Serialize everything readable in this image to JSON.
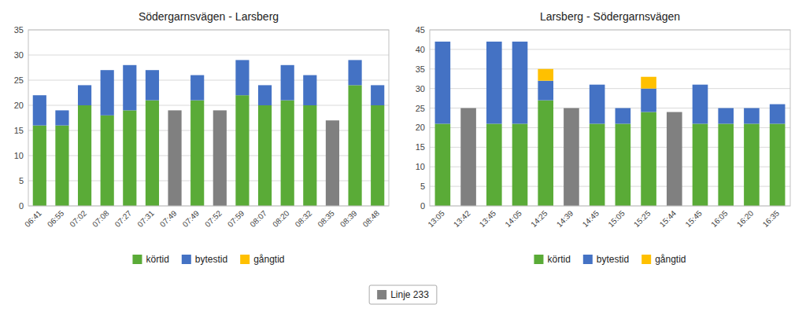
{
  "chart_data": [
    {
      "type": "bar",
      "title": "Södergarnsvägen - Larsberg",
      "categories": [
        "06:41",
        "06:55",
        "07:02",
        "07:08",
        "07:27",
        "07:31",
        "07:49",
        "07:49",
        "07:52",
        "07:59",
        "08:07",
        "08:20",
        "08:32",
        "08:35",
        "08:39",
        "08:48"
      ],
      "series": [
        {
          "name": "Linje 233",
          "color": "#808080",
          "values": [
            0,
            0,
            0,
            0,
            0,
            0,
            19,
            0,
            19,
            0,
            0,
            0,
            0,
            17,
            0,
            0
          ]
        },
        {
          "name": "körtid",
          "color": "#5aab37",
          "values": [
            16,
            16,
            20,
            18,
            19,
            21,
            0,
            21,
            0,
            22,
            20,
            21,
            20,
            0,
            24,
            20
          ]
        },
        {
          "name": "bytestid",
          "color": "#4472c4",
          "values": [
            6,
            3,
            4,
            9,
            9,
            6,
            0,
            5,
            0,
            7,
            4,
            7,
            6,
            0,
            5,
            4
          ]
        },
        {
          "name": "gångtid",
          "color": "#ffc000",
          "values": [
            0,
            0,
            0,
            0,
            0,
            0,
            0,
            0,
            0,
            0,
            0,
            0,
            0,
            0,
            0,
            0
          ]
        }
      ],
      "stacked": true,
      "ylim": [
        0,
        35
      ],
      "yticks": [
        0,
        5,
        10,
        15,
        20,
        25,
        30,
        35
      ],
      "grid": true,
      "legend": "bottom"
    },
    {
      "type": "bar",
      "title": "Larsberg - Södergarnsvägen",
      "categories": [
        "13:05",
        "13:42",
        "13:45",
        "14:05",
        "14:25",
        "14:39",
        "14:45",
        "15:05",
        "15:25",
        "15:44",
        "15:45",
        "16:05",
        "16:20",
        "16:35"
      ],
      "series": [
        {
          "name": "Linje 233",
          "color": "#808080",
          "values": [
            0,
            25,
            0,
            0,
            0,
            25,
            0,
            0,
            0,
            24,
            0,
            0,
            0,
            0
          ]
        },
        {
          "name": "körtid",
          "color": "#5aab37",
          "values": [
            21,
            0,
            21,
            21,
            27,
            0,
            21,
            21,
            24,
            0,
            21,
            21,
            21,
            21
          ]
        },
        {
          "name": "bytestid",
          "color": "#4472c4",
          "values": [
            21,
            0,
            21,
            21,
            5,
            0,
            10,
            4,
            6,
            0,
            10,
            4,
            4,
            5
          ]
        },
        {
          "name": "gångtid",
          "color": "#ffc000",
          "values": [
            0,
            0,
            0,
            0,
            3,
            0,
            0,
            0,
            3,
            0,
            0,
            0,
            0,
            0
          ]
        }
      ],
      "stacked": true,
      "ylim": [
        0,
        45
      ],
      "yticks": [
        0,
        5,
        10,
        15,
        20,
        25,
        30,
        35,
        40,
        45
      ],
      "grid": true,
      "legend": "bottom"
    }
  ]
}
